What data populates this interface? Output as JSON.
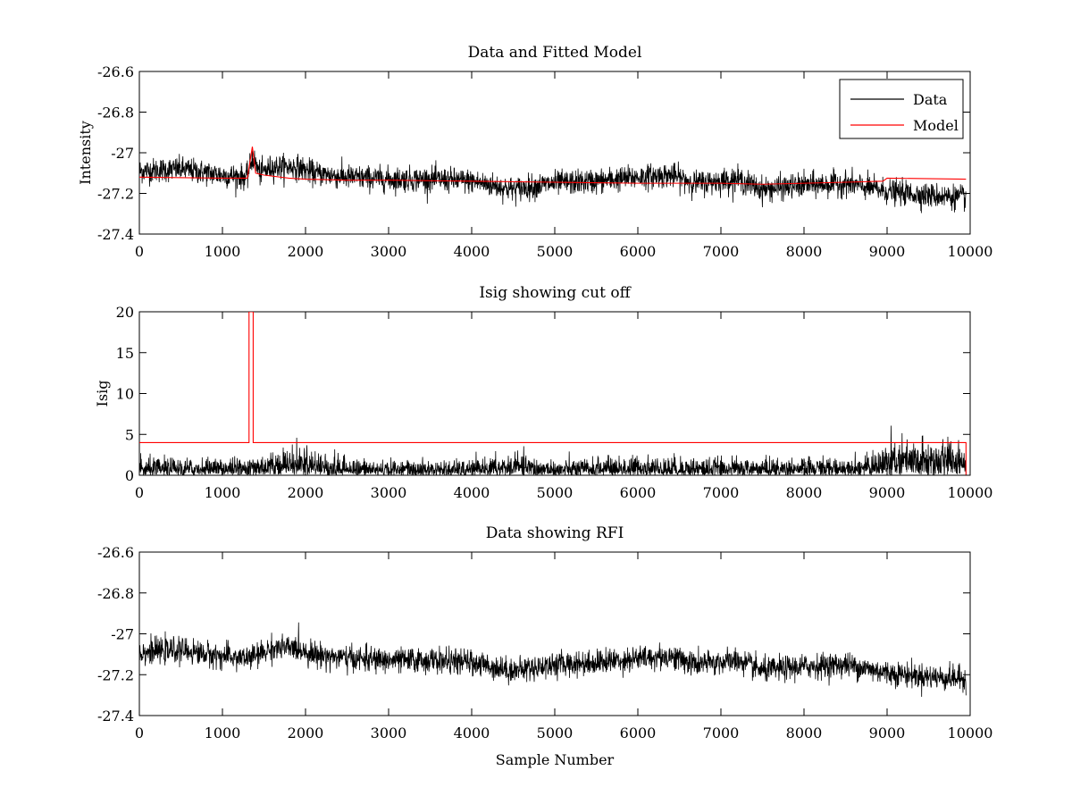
{
  "chart_data": [
    {
      "type": "line",
      "title": "Data and Fitted Model",
      "xlabel": "",
      "ylabel": "Intensity",
      "xlim": [
        0,
        10000
      ],
      "ylim": [
        -27.4,
        -26.6
      ],
      "xticks": [
        0,
        1000,
        2000,
        3000,
        4000,
        5000,
        6000,
        7000,
        8000,
        9000,
        10000
      ],
      "yticks": [
        -27.4,
        -27.2,
        -27,
        -26.8,
        -26.6
      ],
      "xtick_labels": [
        "0",
        "1000",
        "2000",
        "3000",
        "4000",
        "5000",
        "6000",
        "7000",
        "8000",
        "9000",
        "10000"
      ],
      "ytick_labels": [
        "-27.4",
        "-27.2",
        "-27",
        "-26.8",
        "-26.6"
      ],
      "legend": {
        "position": "top-right",
        "entries": [
          "Data",
          "Model"
        ]
      },
      "series": [
        {
          "name": "Data",
          "color": "#000000",
          "style": "noisy",
          "noise_sd": 0.03,
          "x": [
            0,
            500,
            1000,
            1300,
            1360,
            1450,
            1600,
            1900,
            2100,
            2500,
            3000,
            3500,
            4000,
            4500,
            5000,
            5500,
            6000,
            6400,
            6700,
            7200,
            7500,
            8000,
            8500,
            9000,
            9500,
            9950
          ],
          "y": [
            -27.09,
            -27.08,
            -27.11,
            -27.12,
            -27.02,
            -27.1,
            -27.07,
            -27.07,
            -27.1,
            -27.12,
            -27.13,
            -27.13,
            -27.14,
            -27.18,
            -27.15,
            -27.14,
            -27.12,
            -27.11,
            -27.15,
            -27.13,
            -27.18,
            -27.16,
            -27.15,
            -27.19,
            -27.21,
            -27.22
          ]
        },
        {
          "name": "Model",
          "color": "#ff0000",
          "style": "smooth",
          "x": [
            0,
            1000,
            1300,
            1360,
            1400,
            1500,
            1800,
            2000,
            2500,
            3000,
            4000,
            5000,
            6000,
            6500,
            7000,
            7500,
            8000,
            8500,
            8950,
            9000,
            9950
          ],
          "y": [
            -27.12,
            -27.125,
            -27.125,
            -26.97,
            -27.1,
            -27.11,
            -27.125,
            -27.13,
            -27.135,
            -27.135,
            -27.14,
            -27.145,
            -27.15,
            -27.15,
            -27.15,
            -27.155,
            -27.15,
            -27.145,
            -27.14,
            -27.125,
            -27.13
          ]
        }
      ]
    },
    {
      "type": "line",
      "title": "Isig showing cut off",
      "xlabel": "",
      "ylabel": "Isig",
      "xlim": [
        0,
        10000
      ],
      "ylim": [
        0,
        20
      ],
      "xticks": [
        0,
        1000,
        2000,
        3000,
        4000,
        5000,
        6000,
        7000,
        8000,
        9000,
        10000
      ],
      "yticks": [
        0,
        5,
        10,
        15,
        20
      ],
      "xtick_labels": [
        "0",
        "1000",
        "2000",
        "3000",
        "4000",
        "5000",
        "6000",
        "7000",
        "8000",
        "9000",
        "10000"
      ],
      "ytick_labels": [
        "0",
        "5",
        "10",
        "15",
        "20"
      ],
      "series": [
        {
          "color": "#000000",
          "style": "noisy-abs",
          "noise_sd": 0.8,
          "x": [
            0,
            1000,
            1300,
            1800,
            2000,
            2500,
            3000,
            4000,
            4500,
            5000,
            6000,
            7000,
            8000,
            8800,
            9000,
            9500,
            9950
          ],
          "y": [
            0.7,
            0.7,
            0.8,
            1.2,
            1.2,
            0.7,
            0.6,
            0.6,
            0.9,
            0.6,
            0.8,
            0.7,
            0.7,
            0.8,
            1.4,
            1.5,
            1.5
          ]
        },
        {
          "color": "#ff0000",
          "style": "step",
          "x": [
            0,
            1320,
            1320,
            1370,
            1370,
            9950,
            9950
          ],
          "y": [
            4,
            4,
            20,
            20,
            4,
            4,
            0
          ]
        }
      ]
    },
    {
      "type": "line",
      "title": "Data showing RFI",
      "xlabel": "Sample Number",
      "ylabel": "",
      "xlim": [
        0,
        10000
      ],
      "ylim": [
        -27.4,
        -26.6
      ],
      "xticks": [
        0,
        1000,
        2000,
        3000,
        4000,
        5000,
        6000,
        7000,
        8000,
        9000,
        10000
      ],
      "yticks": [
        -27.4,
        -27.2,
        -27,
        -26.8,
        -26.6
      ],
      "xtick_labels": [
        "0",
        "1000",
        "2000",
        "3000",
        "4000",
        "5000",
        "6000",
        "7000",
        "8000",
        "9000",
        "10000"
      ],
      "ytick_labels": [
        "-27.4",
        "-27.2",
        "-27",
        "-26.8",
        "-26.6"
      ],
      "series": [
        {
          "color": "#000000",
          "style": "noisy",
          "noise_sd": 0.03,
          "x": [
            0,
            500,
            1000,
            1300,
            1450,
            1600,
            1900,
            2100,
            2500,
            3000,
            3500,
            4000,
            4500,
            5000,
            5500,
            6000,
            6400,
            6700,
            7200,
            7500,
            8000,
            8500,
            9000,
            9500,
            9950
          ],
          "y": [
            -27.09,
            -27.08,
            -27.11,
            -27.12,
            -27.1,
            -27.07,
            -27.07,
            -27.1,
            -27.12,
            -27.13,
            -27.13,
            -27.14,
            -27.18,
            -27.15,
            -27.14,
            -27.12,
            -27.11,
            -27.15,
            -27.13,
            -27.18,
            -27.16,
            -27.15,
            -27.19,
            -27.21,
            -27.22
          ]
        }
      ]
    }
  ]
}
